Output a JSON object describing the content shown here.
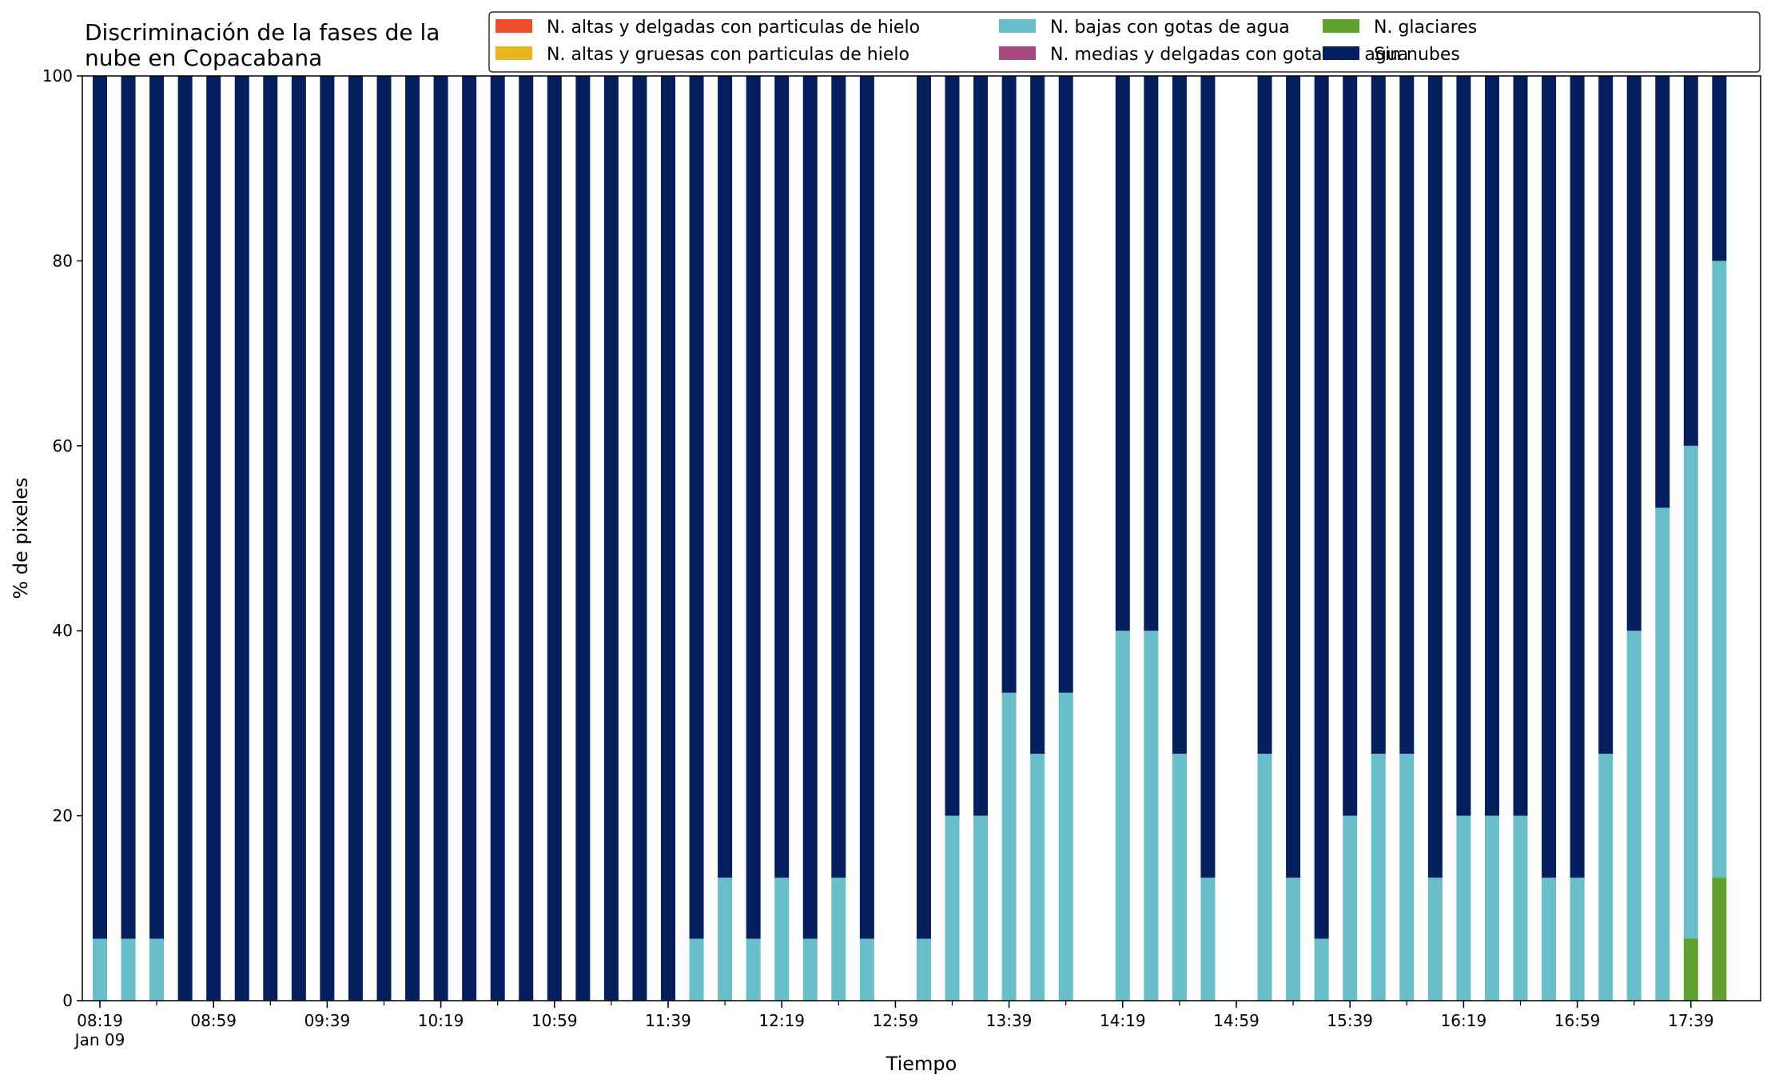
{
  "chart_data": {
    "type": "bar",
    "stacked": true,
    "title_lines": [
      "Discriminación de la fases de la",
      "nube en Copacabana"
    ],
    "xlabel": "Tiempo",
    "ylabel": "% de pixeles",
    "ylim": [
      0,
      100
    ],
    "yticks": [
      0,
      20,
      40,
      60,
      80,
      100
    ],
    "x_start": "08:19",
    "x_interval_minutes": 10,
    "x_ticks": [
      {
        "index": 0,
        "label": "08:19",
        "sublabel": "Jan 09"
      },
      {
        "index": 4,
        "label": "08:59"
      },
      {
        "index": 8,
        "label": "09:39"
      },
      {
        "index": 12,
        "label": "10:19"
      },
      {
        "index": 16,
        "label": "10:59"
      },
      {
        "index": 20,
        "label": "11:39"
      },
      {
        "index": 24,
        "label": "12:19"
      },
      {
        "index": 28,
        "label": "12:59"
      },
      {
        "index": 32,
        "label": "13:39"
      },
      {
        "index": 36,
        "label": "14:19"
      },
      {
        "index": 40,
        "label": "14:59"
      },
      {
        "index": 44,
        "label": "15:39"
      },
      {
        "index": 48,
        "label": "16:19"
      },
      {
        "index": 52,
        "label": "16:59"
      },
      {
        "index": 56,
        "label": "17:39"
      }
    ],
    "legend_position": "top-right",
    "legend_order": [
      0,
      2,
      4,
      1,
      3,
      5
    ],
    "grid": false,
    "series": [
      {
        "name": "N. altas y delgadas con particulas de hielo",
        "color": "#ee4c2c",
        "values": [
          0,
          0,
          0,
          0,
          0,
          0,
          0,
          0,
          0,
          0,
          0,
          0,
          0,
          0,
          0,
          0,
          0,
          0,
          0,
          0,
          0,
          0,
          0,
          0,
          0,
          0,
          0,
          0,
          0,
          0,
          0,
          0,
          0,
          0,
          0,
          0,
          0,
          0,
          0,
          0,
          0,
          0,
          0,
          0,
          0,
          0,
          0,
          0,
          0,
          0,
          0,
          0,
          0,
          0,
          0,
          0,
          0,
          0
        ]
      },
      {
        "name": "N. medias y delgadas con gotas de agua",
        "color": "#a64a7e",
        "values": [
          0,
          0,
          0,
          0,
          0,
          0,
          0,
          0,
          0,
          0,
          0,
          0,
          0,
          0,
          0,
          0,
          0,
          0,
          0,
          0,
          0,
          0,
          0,
          0,
          0,
          0,
          0,
          0,
          0,
          0,
          0,
          0,
          0,
          0,
          0,
          0,
          0,
          0,
          0,
          0,
          0,
          0,
          0,
          0,
          0,
          0,
          0,
          0,
          0,
          0,
          0,
          0,
          0,
          0,
          0,
          0,
          0,
          0
        ]
      },
      {
        "name": "N. altas y gruesas con particulas de hielo",
        "color": "#e6b71e",
        "values": [
          0,
          0,
          0,
          0,
          0,
          0,
          0,
          0,
          0,
          0,
          0,
          0,
          0,
          0,
          0,
          0,
          0,
          0,
          0,
          0,
          0,
          0,
          0,
          0,
          0,
          0,
          0,
          0,
          0,
          0,
          0,
          0,
          0,
          0,
          0,
          0,
          0,
          0,
          0,
          0,
          0,
          0,
          0,
          0,
          0,
          0,
          0,
          0,
          0,
          0,
          0,
          0,
          0,
          0,
          0,
          0,
          0,
          0
        ]
      },
      {
        "name": "N. glaciares",
        "color": "#5fa12e",
        "values": [
          0,
          0,
          0,
          0,
          0,
          0,
          0,
          0,
          0,
          0,
          0,
          0,
          0,
          0,
          0,
          0,
          0,
          0,
          0,
          0,
          0,
          0,
          0,
          0,
          0,
          0,
          0,
          0,
          0,
          0,
          0,
          0,
          0,
          0,
          0,
          0,
          0,
          0,
          0,
          0,
          0,
          0,
          0,
          0,
          0,
          0,
          0,
          0,
          0,
          0,
          0,
          0,
          0,
          0,
          0,
          0,
          6.7,
          13.3
        ]
      },
      {
        "name": "N. bajas con gotas de agua",
        "color": "#68bfca",
        "values": [
          6.7,
          6.7,
          6.7,
          0,
          0,
          0,
          0,
          0,
          0,
          0,
          0,
          0,
          0,
          0,
          0,
          0,
          0,
          0,
          0,
          0,
          0,
          6.7,
          13.3,
          6.7,
          13.3,
          6.7,
          13.3,
          6.7,
          null,
          6.7,
          20,
          20,
          33.3,
          26.7,
          33.3,
          null,
          40,
          40,
          26.7,
          13.3,
          null,
          26.7,
          13.3,
          6.7,
          20,
          26.7,
          26.7,
          13.3,
          20,
          20,
          20,
          13.3,
          13.3,
          26.7,
          40,
          53.3,
          53.3,
          66.7
        ]
      },
      {
        "name": "Sin nubes",
        "color": "#041e5e",
        "values": [
          93.3,
          93.3,
          93.3,
          100,
          100,
          100,
          100,
          100,
          100,
          100,
          100,
          100,
          100,
          100,
          100,
          100,
          100,
          100,
          100,
          100,
          100,
          93.3,
          86.7,
          93.3,
          86.7,
          93.3,
          86.7,
          93.3,
          null,
          93.3,
          80,
          80,
          66.7,
          73.3,
          66.7,
          null,
          60,
          60,
          73.3,
          86.7,
          null,
          73.3,
          86.7,
          93.3,
          80,
          73.3,
          73.3,
          86.7,
          80,
          80,
          80,
          86.7,
          86.7,
          73.3,
          60,
          46.7,
          40,
          20
        ]
      }
    ]
  }
}
